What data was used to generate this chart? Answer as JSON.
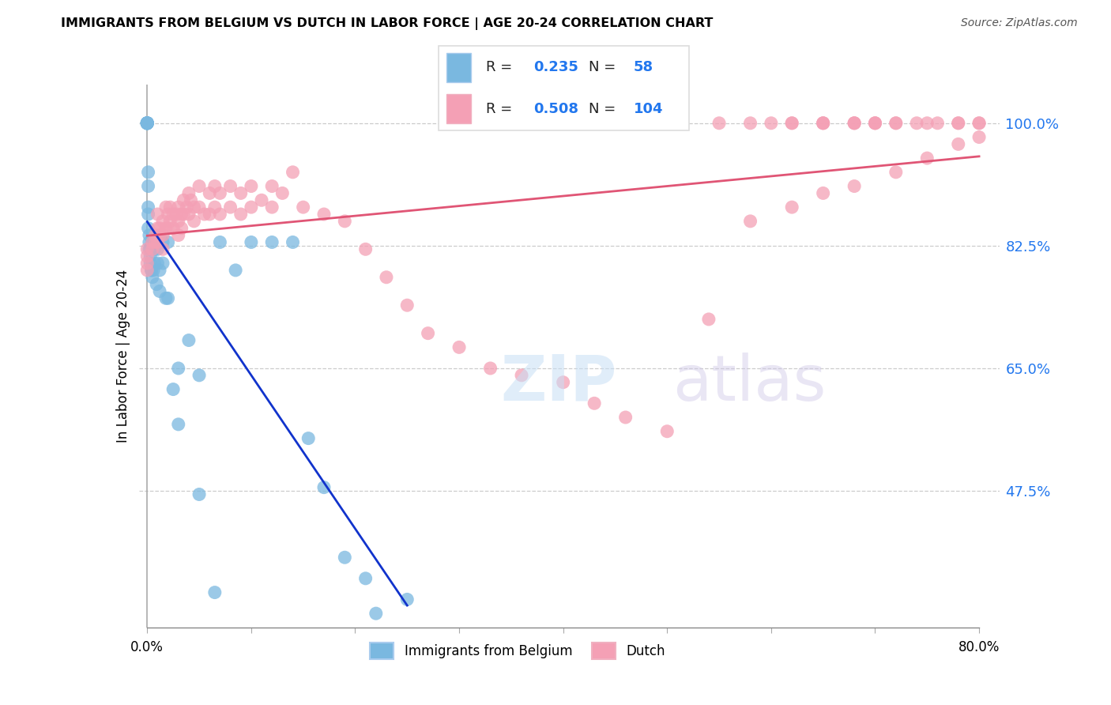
{
  "title": "IMMIGRANTS FROM BELGIUM VS DUTCH IN LABOR FORCE | AGE 20-24 CORRELATION CHART",
  "source": "Source: ZipAtlas.com",
  "ylabel": "In Labor Force | Age 20-24",
  "right_ytick_labels": [
    "47.5%",
    "65.0%",
    "82.5%",
    "100.0%"
  ],
  "right_ytick_values": [
    0.475,
    0.65,
    0.825,
    1.0
  ],
  "xlim": [
    -0.008,
    0.82
  ],
  "ylim": [
    0.28,
    1.055
  ],
  "blue_R": 0.235,
  "blue_N": 58,
  "pink_R": 0.508,
  "pink_N": 104,
  "blue_color": "#7ab8e0",
  "pink_color": "#f4a0b5",
  "blue_line_color": "#1133cc",
  "pink_line_color": "#e05575",
  "legend_blue_label": "Immigrants from Belgium",
  "legend_pink_label": "Dutch",
  "blue_x": [
    0.0,
    0.0,
    0.0,
    0.0,
    0.0,
    0.0,
    0.0,
    0.0,
    0.0,
    0.0,
    0.001,
    0.001,
    0.001,
    0.001,
    0.001,
    0.002,
    0.002,
    0.002,
    0.003,
    0.003,
    0.003,
    0.004,
    0.004,
    0.005,
    0.005,
    0.006,
    0.007,
    0.007,
    0.008,
    0.009,
    0.01,
    0.01,
    0.01,
    0.012,
    0.012,
    0.015,
    0.015,
    0.018,
    0.02,
    0.02,
    0.025,
    0.03,
    0.03,
    0.04,
    0.05,
    0.05,
    0.065,
    0.07,
    0.085,
    0.1,
    0.12,
    0.14,
    0.155,
    0.17,
    0.19,
    0.21,
    0.22,
    0.25
  ],
  "blue_y": [
    1.0,
    1.0,
    1.0,
    1.0,
    1.0,
    1.0,
    1.0,
    1.0,
    1.0,
    1.0,
    0.93,
    0.91,
    0.88,
    0.87,
    0.85,
    0.84,
    0.83,
    0.82,
    0.82,
    0.81,
    0.8,
    0.79,
    0.79,
    0.83,
    0.78,
    0.79,
    0.82,
    0.8,
    0.83,
    0.77,
    0.83,
    0.82,
    0.8,
    0.79,
    0.76,
    0.83,
    0.8,
    0.75,
    0.83,
    0.75,
    0.62,
    0.65,
    0.57,
    0.69,
    0.64,
    0.47,
    0.33,
    0.83,
    0.79,
    0.83,
    0.83,
    0.83,
    0.55,
    0.48,
    0.38,
    0.35,
    0.3,
    0.32
  ],
  "pink_x": [
    0.0,
    0.0,
    0.0,
    0.0,
    0.005,
    0.005,
    0.008,
    0.008,
    0.01,
    0.01,
    0.01,
    0.012,
    0.012,
    0.015,
    0.015,
    0.015,
    0.018,
    0.018,
    0.02,
    0.02,
    0.022,
    0.022,
    0.025,
    0.025,
    0.028,
    0.03,
    0.03,
    0.03,
    0.033,
    0.033,
    0.035,
    0.035,
    0.038,
    0.04,
    0.04,
    0.042,
    0.045,
    0.045,
    0.05,
    0.05,
    0.055,
    0.06,
    0.06,
    0.065,
    0.065,
    0.07,
    0.07,
    0.08,
    0.08,
    0.09,
    0.09,
    0.1,
    0.1,
    0.11,
    0.12,
    0.12,
    0.13,
    0.14,
    0.15,
    0.17,
    0.19,
    0.21,
    0.23,
    0.25,
    0.27,
    0.3,
    0.33,
    0.36,
    0.4,
    0.43,
    0.46,
    0.5,
    0.54,
    0.58,
    0.62,
    0.65,
    0.68,
    0.72,
    0.75,
    0.78,
    0.8,
    0.62,
    0.65,
    0.68,
    0.7,
    0.72,
    0.74,
    0.76,
    0.78,
    0.8,
    0.6,
    0.62,
    0.65,
    0.68,
    0.7,
    0.55,
    0.58,
    0.65,
    0.68,
    0.7,
    0.72,
    0.75,
    0.78,
    0.8
  ],
  "pink_y": [
    0.82,
    0.81,
    0.8,
    0.79,
    0.83,
    0.82,
    0.84,
    0.83,
    0.87,
    0.85,
    0.83,
    0.85,
    0.84,
    0.86,
    0.84,
    0.82,
    0.88,
    0.85,
    0.87,
    0.85,
    0.88,
    0.86,
    0.87,
    0.85,
    0.87,
    0.88,
    0.86,
    0.84,
    0.87,
    0.85,
    0.89,
    0.87,
    0.88,
    0.9,
    0.87,
    0.89,
    0.88,
    0.86,
    0.91,
    0.88,
    0.87,
    0.9,
    0.87,
    0.91,
    0.88,
    0.9,
    0.87,
    0.91,
    0.88,
    0.9,
    0.87,
    0.91,
    0.88,
    0.89,
    0.91,
    0.88,
    0.9,
    0.93,
    0.88,
    0.87,
    0.86,
    0.82,
    0.78,
    0.74,
    0.7,
    0.68,
    0.65,
    0.64,
    0.63,
    0.6,
    0.58,
    0.56,
    0.72,
    0.86,
    0.88,
    0.9,
    0.91,
    0.93,
    0.95,
    0.97,
    0.98,
    1.0,
    1.0,
    1.0,
    1.0,
    1.0,
    1.0,
    1.0,
    1.0,
    1.0,
    1.0,
    1.0,
    1.0,
    1.0,
    1.0,
    1.0,
    1.0,
    1.0,
    1.0,
    1.0,
    1.0,
    1.0,
    1.0,
    1.0
  ]
}
